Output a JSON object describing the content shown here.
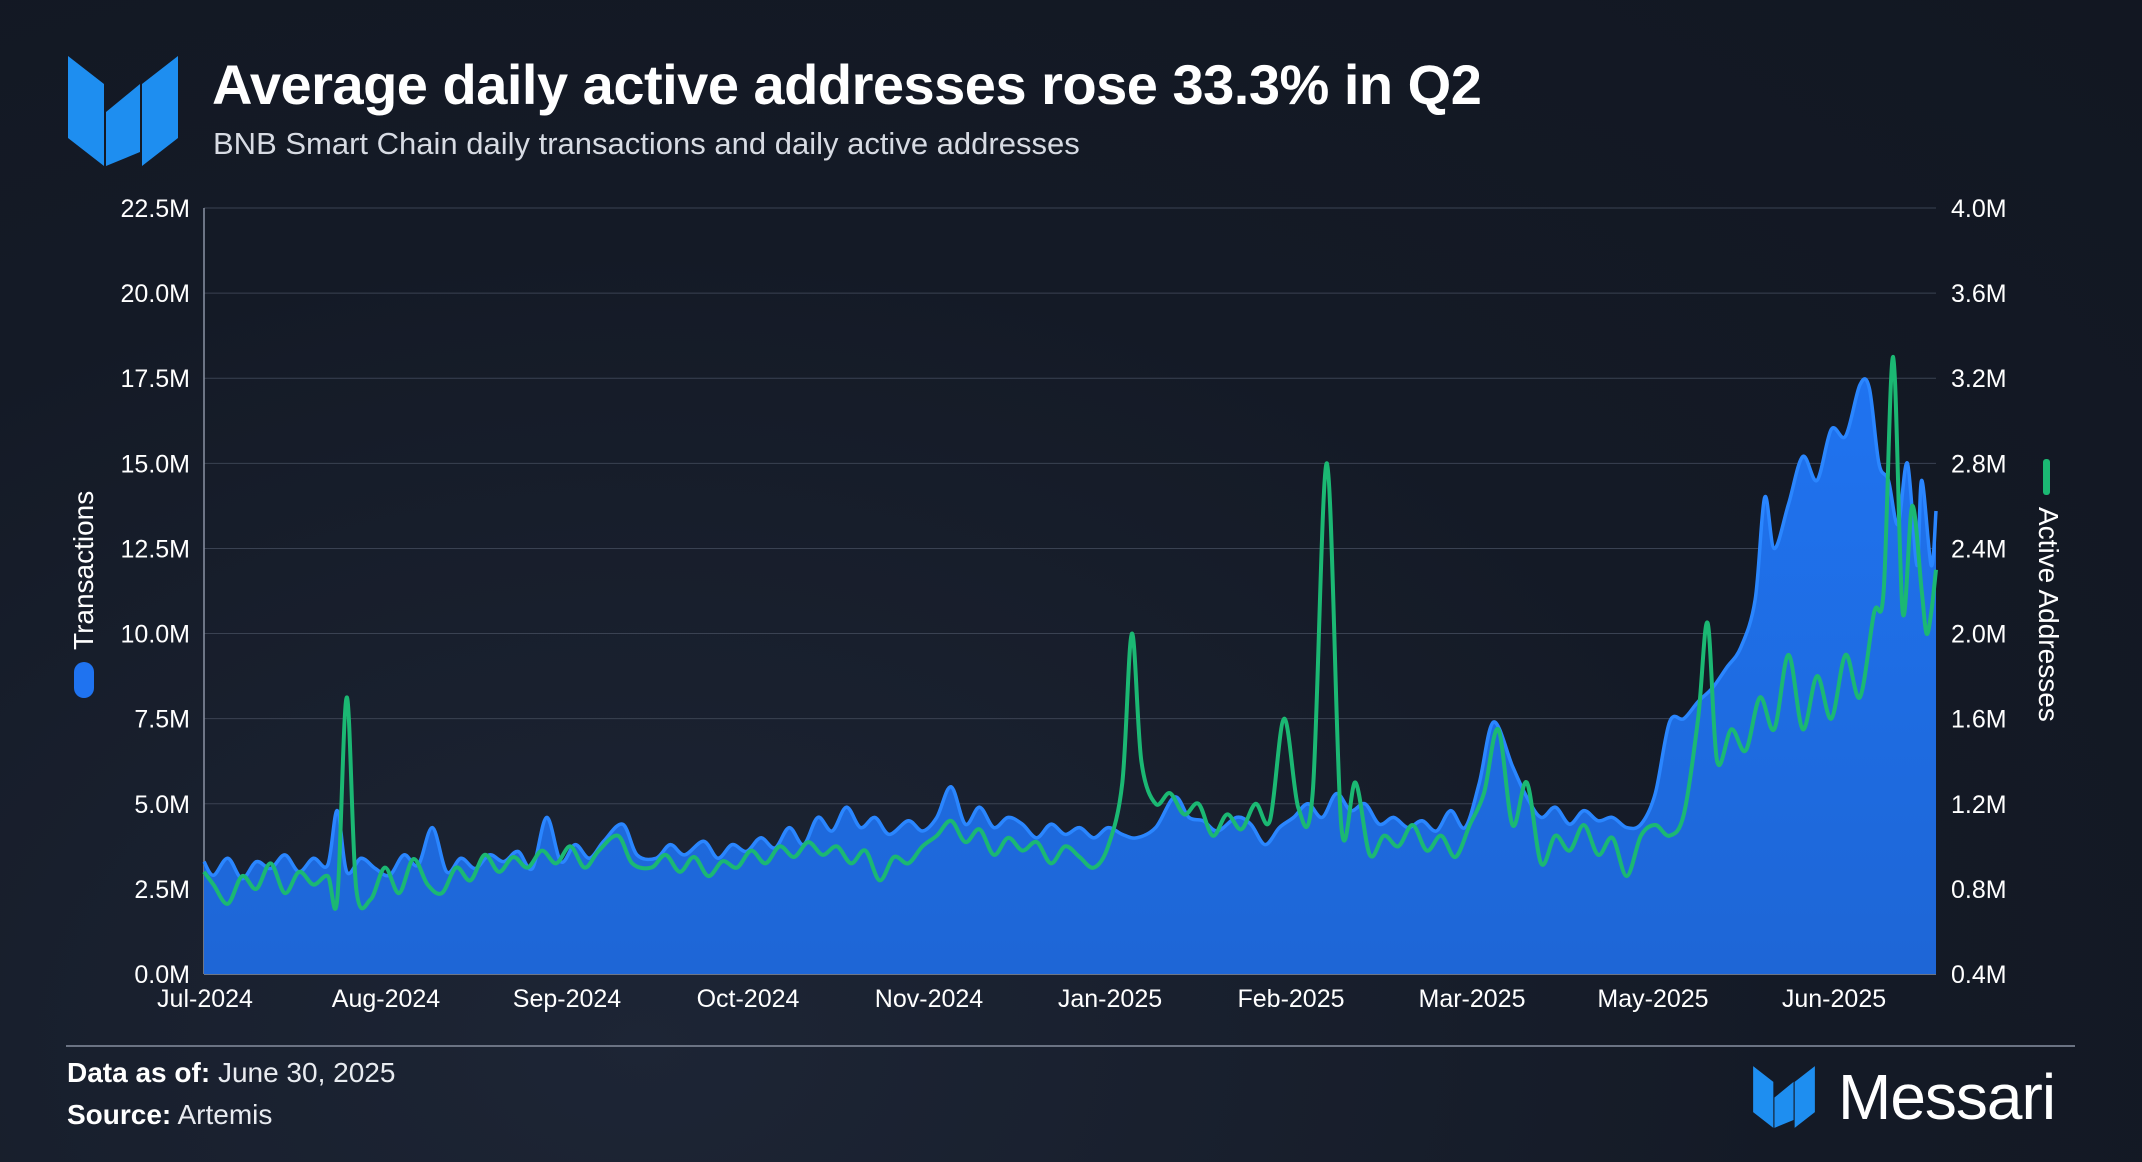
{
  "header": {
    "title": "Average daily active addresses rose 33.3% in Q2",
    "subtitle": "BNB Smart Chain daily transactions and daily active addresses"
  },
  "footer": {
    "data_label": "Data as of:",
    "data_value": "June 30, 2025",
    "source_label": "Source:",
    "source_value": "Artemis",
    "brand": "Messari"
  },
  "colors": {
    "transactions": "#1f73f0",
    "active_addresses": "#1bb873",
    "background": "#141a26",
    "brand_blue": "#1e8ef0"
  },
  "chart_data": {
    "type": "area",
    "title": "Average daily active addresses rose 33.3% in Q2",
    "subtitle": "BNB Smart Chain daily transactions and daily active addresses",
    "x_range": [
      "2024-07-01",
      "2025-06-30"
    ],
    "x_ticks": [
      "Jul-2024",
      "Aug-2024",
      "Sep-2024",
      "Oct-2024",
      "Nov-2024",
      "Jan-2025",
      "Feb-2025",
      "Mar-2025",
      "May-2025",
      "Jun-2025"
    ],
    "y_left": {
      "label": "Transactions",
      "ticks": [
        "0.0M",
        "2.5M",
        "5.0M",
        "7.5M",
        "10.0M",
        "12.5M",
        "15.0M",
        "17.5M",
        "20.0M",
        "22.5M"
      ],
      "range": [
        0,
        22500000
      ]
    },
    "y_right": {
      "label": "Active Addresses",
      "ticks": [
        "0.4M",
        "0.8M",
        "1.2M",
        "1.6M",
        "2.0M",
        "2.4M",
        "2.8M",
        "3.2M",
        "3.6M",
        "4.0M"
      ],
      "range": [
        400000,
        4000000
      ]
    },
    "grid": true,
    "series": [
      {
        "name": "Transactions",
        "type": "area",
        "axis": "left",
        "points": [
          [
            "2024-07-01",
            3.3
          ],
          [
            "2024-07-03",
            2.9
          ],
          [
            "2024-07-06",
            3.4
          ],
          [
            "2024-07-09",
            2.8
          ],
          [
            "2024-07-12",
            3.3
          ],
          [
            "2024-07-15",
            3.1
          ],
          [
            "2024-07-18",
            3.5
          ],
          [
            "2024-07-21",
            3.0
          ],
          [
            "2024-07-24",
            3.4
          ],
          [
            "2024-07-27",
            3.2
          ],
          [
            "2024-07-29",
            4.8
          ],
          [
            "2024-07-31",
            3.0
          ],
          [
            "2024-08-03",
            3.4
          ],
          [
            "2024-08-06",
            3.1
          ],
          [
            "2024-08-09",
            2.9
          ],
          [
            "2024-08-12",
            3.5
          ],
          [
            "2024-08-15",
            3.2
          ],
          [
            "2024-08-18",
            4.3
          ],
          [
            "2024-08-21",
            3.0
          ],
          [
            "2024-08-24",
            3.4
          ],
          [
            "2024-08-27",
            3.1
          ],
          [
            "2024-08-30",
            3.5
          ],
          [
            "2024-09-02",
            3.3
          ],
          [
            "2024-09-05",
            3.6
          ],
          [
            "2024-09-08",
            3.1
          ],
          [
            "2024-09-11",
            4.6
          ],
          [
            "2024-09-14",
            3.3
          ],
          [
            "2024-09-17",
            3.8
          ],
          [
            "2024-09-20",
            3.4
          ],
          [
            "2024-09-23",
            3.9
          ],
          [
            "2024-09-27",
            4.4
          ],
          [
            "2024-09-30",
            3.5
          ],
          [
            "2024-10-04",
            3.4
          ],
          [
            "2024-10-07",
            3.8
          ],
          [
            "2024-10-10",
            3.5
          ],
          [
            "2024-10-14",
            3.9
          ],
          [
            "2024-10-17",
            3.4
          ],
          [
            "2024-10-20",
            3.8
          ],
          [
            "2024-10-23",
            3.6
          ],
          [
            "2024-10-26",
            4.0
          ],
          [
            "2024-10-29",
            3.7
          ],
          [
            "2024-11-01",
            4.3
          ],
          [
            "2024-11-04",
            3.8
          ],
          [
            "2024-11-07",
            4.6
          ],
          [
            "2024-11-10",
            4.2
          ],
          [
            "2024-11-13",
            4.9
          ],
          [
            "2024-11-16",
            4.3
          ],
          [
            "2024-11-19",
            4.6
          ],
          [
            "2024-11-22",
            4.1
          ],
          [
            "2024-11-26",
            4.5
          ],
          [
            "2024-11-29",
            4.2
          ],
          [
            "2024-12-02",
            4.6
          ],
          [
            "2024-12-05",
            5.5
          ],
          [
            "2024-12-08",
            4.4
          ],
          [
            "2024-12-11",
            4.9
          ],
          [
            "2024-12-14",
            4.3
          ],
          [
            "2024-12-17",
            4.6
          ],
          [
            "2024-12-20",
            4.4
          ],
          [
            "2024-12-23",
            4.0
          ],
          [
            "2024-12-26",
            4.4
          ],
          [
            "2024-12-29",
            4.1
          ],
          [
            "2025-01-01",
            4.3
          ],
          [
            "2025-01-04",
            4.0
          ],
          [
            "2025-01-07",
            4.3
          ],
          [
            "2025-01-10",
            4.1
          ],
          [
            "2025-01-13",
            4.0
          ],
          [
            "2025-01-17",
            4.3
          ],
          [
            "2025-01-21",
            5.2
          ],
          [
            "2025-01-24",
            4.6
          ],
          [
            "2025-01-27",
            4.5
          ],
          [
            "2025-01-30",
            4.2
          ],
          [
            "2025-02-03",
            4.6
          ],
          [
            "2025-02-06",
            4.4
          ],
          [
            "2025-02-09",
            3.8
          ],
          [
            "2025-02-12",
            4.3
          ],
          [
            "2025-02-15",
            4.6
          ],
          [
            "2025-02-18",
            5.0
          ],
          [
            "2025-02-21",
            4.6
          ],
          [
            "2025-02-24",
            5.3
          ],
          [
            "2025-02-27",
            4.8
          ],
          [
            "2025-03-02",
            5.0
          ],
          [
            "2025-03-05",
            4.4
          ],
          [
            "2025-03-08",
            4.6
          ],
          [
            "2025-03-11",
            4.3
          ],
          [
            "2025-03-14",
            4.5
          ],
          [
            "2025-03-17",
            4.2
          ],
          [
            "2025-03-20",
            4.8
          ],
          [
            "2025-03-23",
            4.3
          ],
          [
            "2025-03-26",
            5.6
          ],
          [
            "2025-03-29",
            7.4
          ],
          [
            "2025-04-02",
            6.1
          ],
          [
            "2025-04-05",
            5.2
          ],
          [
            "2025-04-08",
            4.6
          ],
          [
            "2025-04-11",
            4.9
          ],
          [
            "2025-04-14",
            4.4
          ],
          [
            "2025-04-17",
            4.8
          ],
          [
            "2025-04-20",
            4.5
          ],
          [
            "2025-04-23",
            4.6
          ],
          [
            "2025-04-26",
            4.3
          ],
          [
            "2025-04-29",
            4.4
          ],
          [
            "2025-05-02",
            5.3
          ],
          [
            "2025-05-05",
            7.4
          ],
          [
            "2025-05-08",
            7.5
          ],
          [
            "2025-05-11",
            8.0
          ],
          [
            "2025-05-14",
            8.4
          ],
          [
            "2025-05-17",
            9.0
          ],
          [
            "2025-05-20",
            9.6
          ],
          [
            "2025-05-23",
            11.0
          ],
          [
            "2025-05-25",
            14.0
          ],
          [
            "2025-05-27",
            12.5
          ],
          [
            "2025-05-30",
            13.8
          ],
          [
            "2025-06-02",
            15.2
          ],
          [
            "2025-06-05",
            14.5
          ],
          [
            "2025-06-08",
            16.0
          ],
          [
            "2025-06-11",
            15.8
          ],
          [
            "2025-06-14",
            17.3
          ],
          [
            "2025-06-16",
            17.2
          ],
          [
            "2025-06-18",
            15.0
          ],
          [
            "2025-06-20",
            14.5
          ],
          [
            "2025-06-22",
            13.2
          ],
          [
            "2025-06-24",
            15.0
          ],
          [
            "2025-06-26",
            12.0
          ],
          [
            "2025-06-27",
            14.5
          ],
          [
            "2025-06-29",
            12.0
          ],
          [
            "2025-06-30",
            13.6
          ]
        ]
      },
      {
        "name": "Active Addresses",
        "type": "line",
        "axis": "right",
        "points": [
          [
            "2024-07-01",
            0.88
          ],
          [
            "2024-07-03",
            0.82
          ],
          [
            "2024-07-06",
            0.73
          ],
          [
            "2024-07-09",
            0.86
          ],
          [
            "2024-07-12",
            0.8
          ],
          [
            "2024-07-15",
            0.92
          ],
          [
            "2024-07-18",
            0.78
          ],
          [
            "2024-07-21",
            0.88
          ],
          [
            "2024-07-24",
            0.82
          ],
          [
            "2024-07-27",
            0.86
          ],
          [
            "2024-07-29",
            0.75
          ],
          [
            "2024-07-31",
            1.7
          ],
          [
            "2024-08-02",
            0.8
          ],
          [
            "2024-08-05",
            0.75
          ],
          [
            "2024-08-08",
            0.9
          ],
          [
            "2024-08-11",
            0.78
          ],
          [
            "2024-08-14",
            0.94
          ],
          [
            "2024-08-17",
            0.82
          ],
          [
            "2024-08-20",
            0.78
          ],
          [
            "2024-08-23",
            0.9
          ],
          [
            "2024-08-26",
            0.84
          ],
          [
            "2024-08-29",
            0.96
          ],
          [
            "2024-09-01",
            0.88
          ],
          [
            "2024-09-04",
            0.95
          ],
          [
            "2024-09-07",
            0.9
          ],
          [
            "2024-09-10",
            0.98
          ],
          [
            "2024-09-13",
            0.92
          ],
          [
            "2024-09-16",
            1.0
          ],
          [
            "2024-09-19",
            0.9
          ],
          [
            "2024-09-22",
            0.98
          ],
          [
            "2024-09-26",
            1.05
          ],
          [
            "2024-09-29",
            0.92
          ],
          [
            "2024-10-03",
            0.9
          ],
          [
            "2024-10-06",
            0.96
          ],
          [
            "2024-10-09",
            0.88
          ],
          [
            "2024-10-12",
            0.95
          ],
          [
            "2024-10-15",
            0.86
          ],
          [
            "2024-10-18",
            0.93
          ],
          [
            "2024-10-21",
            0.9
          ],
          [
            "2024-10-24",
            0.98
          ],
          [
            "2024-10-27",
            0.92
          ],
          [
            "2024-10-30",
            1.0
          ],
          [
            "2024-11-02",
            0.95
          ],
          [
            "2024-11-05",
            1.02
          ],
          [
            "2024-11-08",
            0.96
          ],
          [
            "2024-11-11",
            1.0
          ],
          [
            "2024-11-14",
            0.92
          ],
          [
            "2024-11-17",
            0.98
          ],
          [
            "2024-11-20",
            0.84
          ],
          [
            "2024-11-23",
            0.95
          ],
          [
            "2024-11-26",
            0.92
          ],
          [
            "2024-11-29",
            1.0
          ],
          [
            "2024-12-02",
            1.05
          ],
          [
            "2024-12-05",
            1.12
          ],
          [
            "2024-12-08",
            1.02
          ],
          [
            "2024-12-11",
            1.08
          ],
          [
            "2024-12-14",
            0.96
          ],
          [
            "2024-12-17",
            1.04
          ],
          [
            "2024-12-20",
            0.98
          ],
          [
            "2024-12-23",
            1.02
          ],
          [
            "2024-12-26",
            0.92
          ],
          [
            "2024-12-29",
            1.0
          ],
          [
            "2025-01-01",
            0.95
          ],
          [
            "2025-01-04",
            0.9
          ],
          [
            "2025-01-07",
            1.0
          ],
          [
            "2025-01-10",
            1.3
          ],
          [
            "2025-01-12",
            2.0
          ],
          [
            "2025-01-14",
            1.4
          ],
          [
            "2025-01-17",
            1.2
          ],
          [
            "2025-01-20",
            1.25
          ],
          [
            "2025-01-23",
            1.15
          ],
          [
            "2025-01-26",
            1.2
          ],
          [
            "2025-01-29",
            1.05
          ],
          [
            "2025-02-01",
            1.15
          ],
          [
            "2025-02-04",
            1.08
          ],
          [
            "2025-02-07",
            1.2
          ],
          [
            "2025-02-10",
            1.12
          ],
          [
            "2025-02-13",
            1.6
          ],
          [
            "2025-02-16",
            1.18
          ],
          [
            "2025-02-19",
            1.25
          ],
          [
            "2025-02-22",
            2.8
          ],
          [
            "2025-02-25",
            1.1
          ],
          [
            "2025-02-28",
            1.3
          ],
          [
            "2025-03-03",
            0.96
          ],
          [
            "2025-03-06",
            1.05
          ],
          [
            "2025-03-09",
            1.0
          ],
          [
            "2025-03-12",
            1.1
          ],
          [
            "2025-03-15",
            0.98
          ],
          [
            "2025-03-18",
            1.05
          ],
          [
            "2025-03-21",
            0.95
          ],
          [
            "2025-03-24",
            1.1
          ],
          [
            "2025-03-27",
            1.25
          ],
          [
            "2025-03-30",
            1.55
          ],
          [
            "2025-04-02",
            1.1
          ],
          [
            "2025-04-05",
            1.3
          ],
          [
            "2025-04-08",
            0.92
          ],
          [
            "2025-04-11",
            1.05
          ],
          [
            "2025-04-14",
            0.98
          ],
          [
            "2025-04-17",
            1.1
          ],
          [
            "2025-04-20",
            0.96
          ],
          [
            "2025-04-23",
            1.04
          ],
          [
            "2025-04-26",
            0.86
          ],
          [
            "2025-04-29",
            1.05
          ],
          [
            "2025-05-02",
            1.1
          ],
          [
            "2025-05-05",
            1.05
          ],
          [
            "2025-05-08",
            1.15
          ],
          [
            "2025-05-11",
            1.6
          ],
          [
            "2025-05-13",
            2.05
          ],
          [
            "2025-05-15",
            1.4
          ],
          [
            "2025-05-18",
            1.55
          ],
          [
            "2025-05-21",
            1.45
          ],
          [
            "2025-05-24",
            1.7
          ],
          [
            "2025-05-27",
            1.55
          ],
          [
            "2025-05-30",
            1.9
          ],
          [
            "2025-06-02",
            1.55
          ],
          [
            "2025-06-05",
            1.8
          ],
          [
            "2025-06-08",
            1.6
          ],
          [
            "2025-06-11",
            1.9
          ],
          [
            "2025-06-14",
            1.7
          ],
          [
            "2025-06-17",
            2.1
          ],
          [
            "2025-06-19",
            2.2
          ],
          [
            "2025-06-21",
            3.3
          ],
          [
            "2025-06-23",
            2.1
          ],
          [
            "2025-06-25",
            2.6
          ],
          [
            "2025-06-27",
            2.2
          ],
          [
            "2025-06-28",
            2.0
          ],
          [
            "2025-06-29",
            2.1
          ],
          [
            "2025-06-30",
            2.3
          ]
        ]
      }
    ],
    "units": {
      "transactions": "millions",
      "active_addresses": "millions"
    }
  }
}
